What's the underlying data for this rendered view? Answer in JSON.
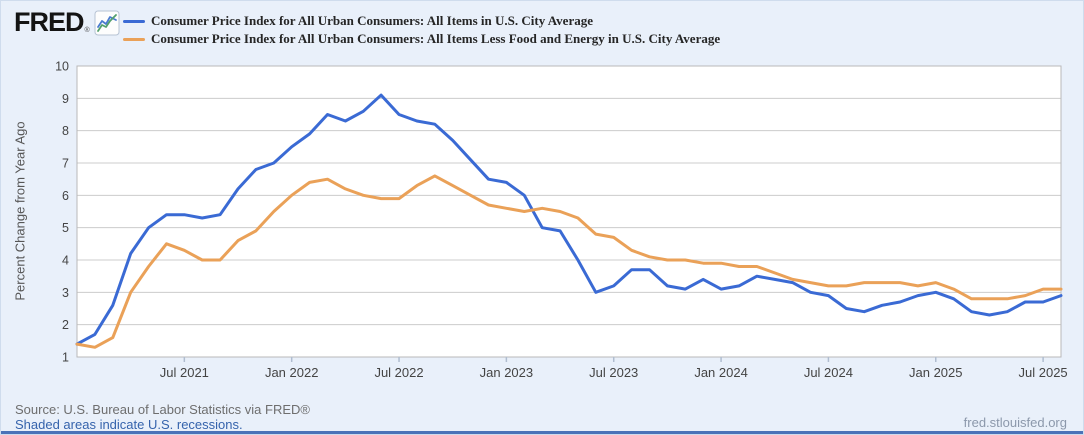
{
  "header": {
    "logo_text": "FRED",
    "logo_reg": "®"
  },
  "legend": {
    "series": [
      {
        "label": "Consumer Price Index for All Urban Consumers: All Items in U.S. City Average",
        "color": "#3a6ad4"
      },
      {
        "label": "Consumer Price Index for All Urban Consumers: All Items Less Food and Energy in U.S. City Average",
        "color": "#eaa158"
      }
    ]
  },
  "chart_data": {
    "type": "line",
    "title": "",
    "xlabel": "",
    "ylabel": "Percent Change from Year Ago",
    "ylim": [
      1,
      10
    ],
    "y_ticks": [
      1,
      2,
      3,
      4,
      5,
      6,
      7,
      8,
      9,
      10
    ],
    "grid": "horizontal",
    "legend_position": "top-left",
    "frequency": "monthly",
    "x": [
      "2021-01",
      "2021-02",
      "2021-03",
      "2021-04",
      "2021-05",
      "2021-06",
      "2021-07",
      "2021-08",
      "2021-09",
      "2021-10",
      "2021-11",
      "2021-12",
      "2022-01",
      "2022-02",
      "2022-03",
      "2022-04",
      "2022-05",
      "2022-06",
      "2022-07",
      "2022-08",
      "2022-09",
      "2022-10",
      "2022-11",
      "2022-12",
      "2023-01",
      "2023-02",
      "2023-03",
      "2023-04",
      "2023-05",
      "2023-06",
      "2023-07",
      "2023-08",
      "2023-09",
      "2023-10",
      "2023-11",
      "2023-12",
      "2024-01",
      "2024-02",
      "2024-03",
      "2024-04",
      "2024-05",
      "2024-06",
      "2024-07",
      "2024-08",
      "2024-09",
      "2024-10",
      "2024-11",
      "2024-12",
      "2025-01",
      "2025-02",
      "2025-03",
      "2025-04",
      "2025-05",
      "2025-06",
      "2025-07",
      "2025-08"
    ],
    "x_tick_indices": [
      6,
      12,
      18,
      24,
      30,
      36,
      42,
      48,
      54
    ],
    "x_tick_labels": [
      "Jul 2021",
      "Jan 2022",
      "Jul 2022",
      "Jan 2023",
      "Jul 2023",
      "Jan 2024",
      "Jul 2024",
      "Jan 2025",
      "Jul 2025"
    ],
    "series": [
      {
        "name": "Consumer Price Index for All Urban Consumers: All Items in U.S. City Average",
        "color": "#3a6ad4",
        "values": [
          1.4,
          1.7,
          2.6,
          4.2,
          5.0,
          5.4,
          5.4,
          5.3,
          5.4,
          6.2,
          6.8,
          7.0,
          7.5,
          7.9,
          8.5,
          8.3,
          8.6,
          9.1,
          8.5,
          8.3,
          8.2,
          7.7,
          7.1,
          6.5,
          6.4,
          6.0,
          5.0,
          4.9,
          4.0,
          3.0,
          3.2,
          3.7,
          3.7,
          3.2,
          3.1,
          3.4,
          3.1,
          3.2,
          3.5,
          3.4,
          3.3,
          3.0,
          2.9,
          2.5,
          2.4,
          2.6,
          2.7,
          2.9,
          3.0,
          2.8,
          2.4,
          2.3,
          2.4,
          2.7,
          2.7,
          2.9
        ]
      },
      {
        "name": "Consumer Price Index for All Urban Consumers: All Items Less Food and Energy in U.S. City Average",
        "color": "#eaa158",
        "values": [
          1.4,
          1.3,
          1.6,
          3.0,
          3.8,
          4.5,
          4.3,
          4.0,
          4.0,
          4.6,
          4.9,
          5.5,
          6.0,
          6.4,
          6.5,
          6.2,
          6.0,
          5.9,
          5.9,
          6.3,
          6.6,
          6.3,
          6.0,
          5.7,
          5.6,
          5.5,
          5.6,
          5.5,
          5.3,
          4.8,
          4.7,
          4.3,
          4.1,
          4.0,
          4.0,
          3.9,
          3.9,
          3.8,
          3.8,
          3.6,
          3.4,
          3.3,
          3.2,
          3.2,
          3.3,
          3.3,
          3.3,
          3.2,
          3.3,
          3.1,
          2.8,
          2.8,
          2.8,
          2.9,
          3.1,
          3.1
        ]
      }
    ]
  },
  "footer": {
    "source": "Source: U.S. Bureau of Labor Statistics via FRED®",
    "recession_note": "Shaded areas indicate U.S. recessions.",
    "site_url": "fred.stlouisfed.org"
  },
  "colors": {
    "page_background": "#e9f0fa",
    "plot_background": "#ffffff",
    "gridline": "#cccccc",
    "plot_border": "#b9b9b9",
    "tick_mark": "#b0bdd0",
    "axis_text": "#444444",
    "bottom_bar": "#4a72b8",
    "link": "#3563ac"
  }
}
